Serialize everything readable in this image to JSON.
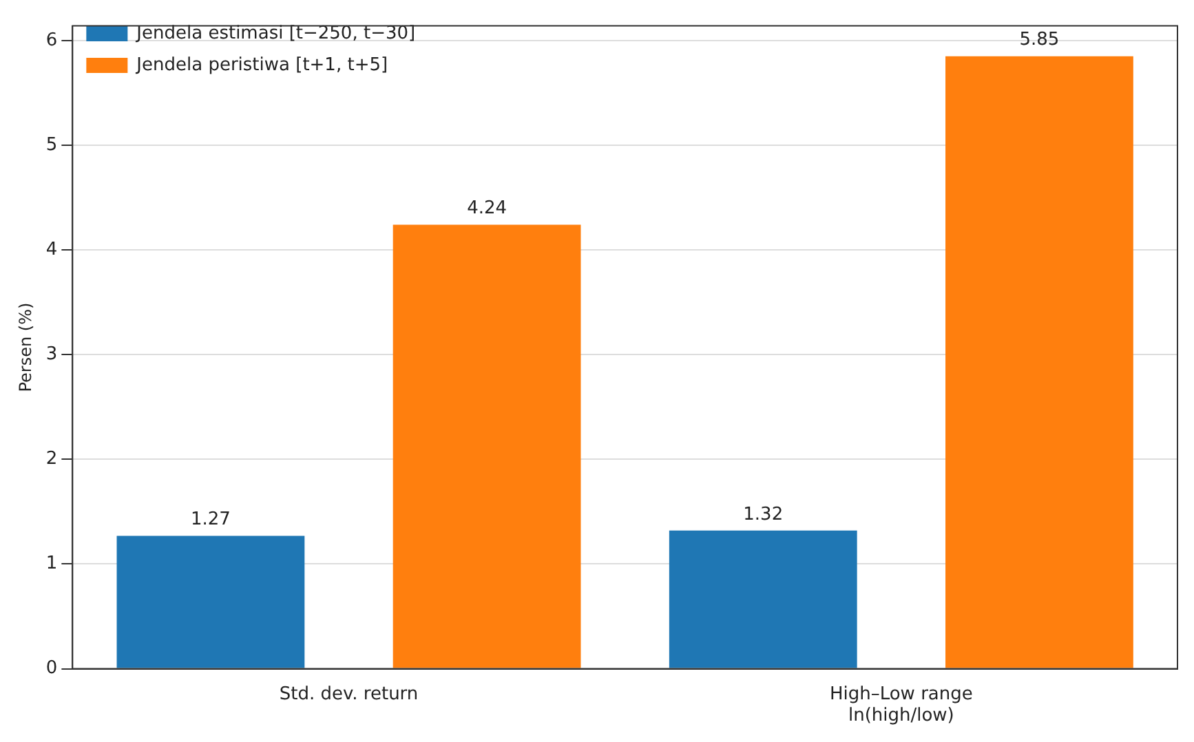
{
  "chart_data": {
    "type": "bar",
    "ylabel": "Persen (%)",
    "categories": [
      "Std. dev. return",
      "High–Low range\nln(high/low)"
    ],
    "series": [
      {
        "name": "Jendela estimasi [t−250, t−30]",
        "color": "#1f77b4",
        "values": [
          1.27,
          1.32
        ]
      },
      {
        "name": "Jendela peristiwa [t+1, t+5]",
        "color": "#ff7f0e",
        "values": [
          4.24,
          5.85
        ]
      }
    ],
    "ylim": [
      0,
      6.14
    ],
    "yticks": [
      0,
      1,
      2,
      3,
      4,
      5,
      6
    ],
    "grid": "y",
    "legend": "top left",
    "data_labels": true
  }
}
